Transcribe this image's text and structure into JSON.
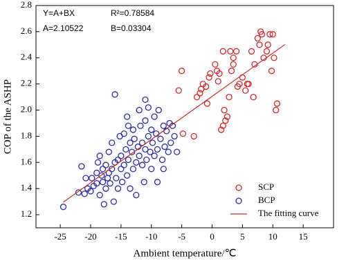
{
  "chart_data": {
    "type": "scatter",
    "xlabel": "Ambient temperature/℃",
    "ylabel": "COP of the ASHP",
    "annotations": [
      "Y=A+BX",
      "R²=0.78584",
      "A=2.10522",
      "B=0.03304"
    ],
    "xlim": [
      -29,
      20
    ],
    "ylim": [
      1.1,
      2.8
    ],
    "xticks": [
      -25,
      -20,
      -15,
      -10,
      -5,
      0,
      5,
      10,
      15
    ],
    "yticks": [
      1.2,
      1.4,
      1.6,
      1.8,
      {
        "value": 2,
        "label": "2.0"
      },
      2.2,
      2.4,
      2.6,
      2.8
    ],
    "legend": "lower right",
    "series": [
      {
        "name": "SCP",
        "color": "#d42a2a",
        "marker": "circle",
        "x": [
          -5,
          -5.5,
          -4.8,
          -3,
          -2.5,
          -2,
          -1.8,
          -1.5,
          -1,
          -0.5,
          -0.3,
          0.5,
          0.8,
          1,
          1.2,
          1.5,
          1.8,
          2,
          2.2,
          2.5,
          2.8,
          3,
          3.2,
          3.5,
          4,
          4.2,
          4.5,
          5,
          5.5,
          5.8,
          6,
          6.5,
          7,
          7.5,
          7.8,
          8,
          8.2,
          8.5,
          9,
          9.2,
          9.5,
          9.8,
          10,
          10.2,
          10.5,
          10.7,
          -0.8,
          3.5,
          6.8,
          1.8
        ],
        "values": [
          2.3,
          2.15,
          1.82,
          1.8,
          2.1,
          2.13,
          2.16,
          2.2,
          2.18,
          2.25,
          2.28,
          2.35,
          2.3,
          2.22,
          2.28,
          1.85,
          1.88,
          2.0,
          1.92,
          1.95,
          2.1,
          2.45,
          2.3,
          2.4,
          2.45,
          2.18,
          2.2,
          2.25,
          2.15,
          2.2,
          2.2,
          2.45,
          2.35,
          2.55,
          2.5,
          2.6,
          2.58,
          2.4,
          2.45,
          2.5,
          2.58,
          2.3,
          2.58,
          2.4,
          2.0,
          2.05,
          2.05,
          2.35,
          2.1,
          2.45
        ]
      },
      {
        "name": "BCP",
        "color": "#2a2aa8",
        "marker": "circle",
        "x": [
          -24.5,
          -21.5,
          -21,
          -20.5,
          -20,
          -19.8,
          -19.5,
          -19,
          -19,
          -18.8,
          -18.5,
          -18.2,
          -18,
          -18,
          -17.8,
          -17.5,
          -17.5,
          -17.2,
          -17,
          -17,
          -16.8,
          -16.5,
          -16.5,
          -16.2,
          -16,
          -16,
          -15.8,
          -15.5,
          -15.5,
          -15.2,
          -15,
          -15,
          -14.8,
          -14.5,
          -14.5,
          -14.2,
          -14,
          -14,
          -13.8,
          -13.5,
          -13.5,
          -13.2,
          -13,
          -13,
          -12.8,
          -12.5,
          -12.5,
          -12.2,
          -12,
          -12,
          -11.8,
          -11.5,
          -11.5,
          -11.2,
          -11,
          -11,
          -10.8,
          -10.5,
          -10.5,
          -10.2,
          -10,
          -10,
          -9.8,
          -9.5,
          -9.5,
          -9.2,
          -9,
          -9,
          -8.8,
          -8.5,
          -8.2,
          -8,
          -8,
          -7.8,
          -7.5,
          -7.2,
          -7,
          -6.8,
          -6.5,
          -6.2,
          -5.8,
          -22,
          -20.8,
          -18.5,
          -13.8,
          -11
        ],
        "values": [
          1.26,
          1.57,
          1.36,
          1.4,
          1.38,
          1.48,
          1.42,
          1.44,
          1.52,
          1.6,
          1.35,
          1.5,
          1.45,
          1.55,
          1.28,
          1.4,
          1.58,
          1.48,
          1.52,
          1.68,
          1.44,
          1.55,
          1.75,
          1.3,
          2.12,
          1.6,
          1.48,
          1.62,
          1.4,
          1.8,
          1.55,
          1.65,
          1.45,
          1.58,
          1.82,
          1.7,
          1.5,
          1.95,
          1.62,
          1.75,
          1.4,
          1.68,
          1.55,
          1.85,
          1.78,
          1.6,
          1.35,
          1.72,
          1.65,
          2.0,
          1.88,
          1.58,
          1.75,
          1.45,
          1.7,
          1.92,
          1.62,
          1.8,
          2.02,
          1.68,
          1.55,
          1.85,
          1.75,
          1.65,
          1.95,
          1.82,
          1.7,
          1.45,
          2.0,
          1.78,
          1.62,
          1.55,
          1.88,
          1.72,
          1.84,
          1.68,
          1.9,
          1.75,
          1.88,
          1.8,
          1.68,
          1.37,
          1.48,
          1.65,
          1.88,
          2.08
        ]
      },
      {
        "name": "The fitting curve",
        "color": "#c0302a",
        "marker": "line",
        "x": [
          -24.5,
          12
        ],
        "values": [
          1.296,
          2.502
        ]
      }
    ]
  }
}
